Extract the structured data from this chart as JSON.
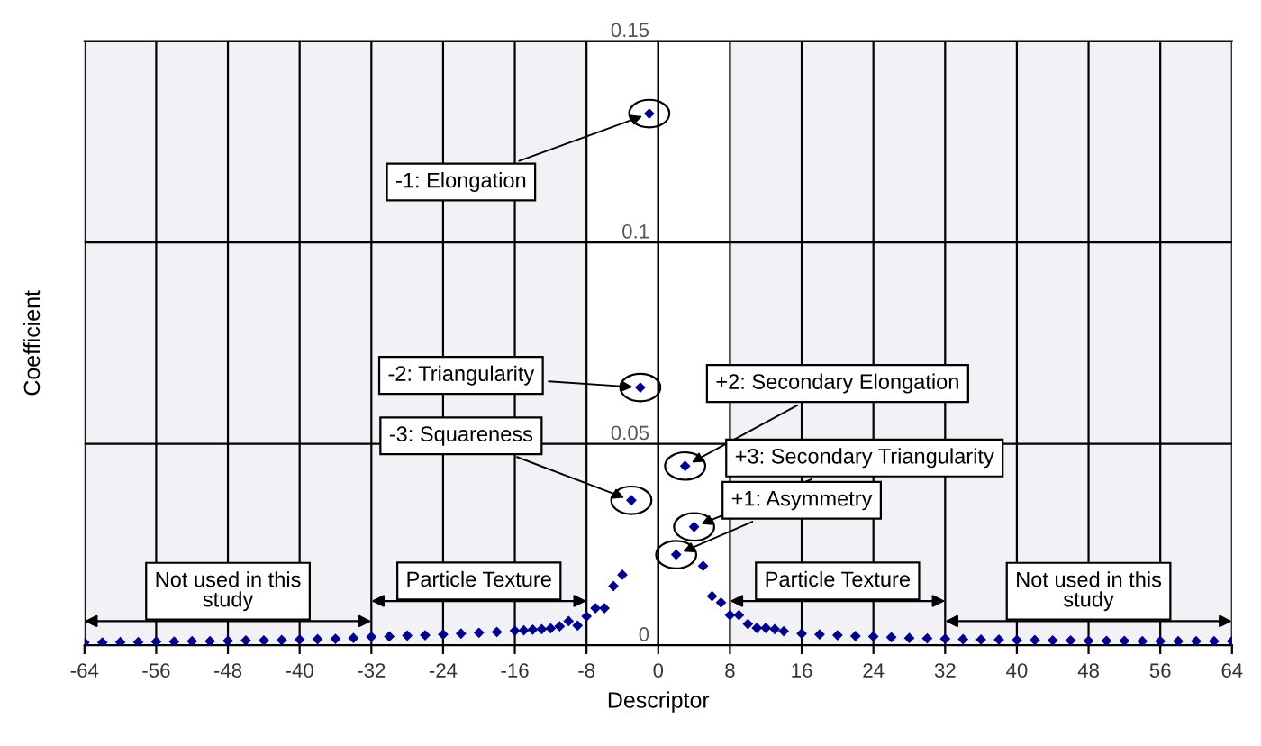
{
  "chart_data": {
    "type": "scatter",
    "xlabel": "Descriptor",
    "ylabel": "Coefficient",
    "xlim": [
      -64,
      64
    ],
    "ylim": [
      0,
      0.15
    ],
    "xticks": [
      -64,
      -56,
      -48,
      -40,
      -32,
      -24,
      -16,
      -8,
      0,
      8,
      16,
      24,
      32,
      40,
      48,
      56,
      64
    ],
    "yticks": [
      0,
      0.05,
      0.1,
      0.15
    ],
    "grid": true,
    "marker": "diamond",
    "series": [
      {
        "color": "#00008b",
        "x": [
          -64,
          -62,
          -60,
          -58,
          -56,
          -54,
          -52,
          -50,
          -48,
          -46,
          -44,
          -42,
          -40,
          -38,
          -36,
          -34,
          -32,
          -30,
          -28,
          -26,
          -24,
          -22,
          -20,
          -18,
          -16,
          -15,
          -14,
          -13,
          -12,
          -11,
          -10,
          -9,
          -8,
          -7,
          -6,
          -5,
          -4,
          -3,
          -2,
          -1,
          2,
          3,
          4,
          5,
          6,
          7,
          8,
          9,
          10,
          11,
          12,
          13,
          14,
          16,
          18,
          20,
          22,
          24,
          26,
          28,
          30,
          32,
          34,
          36,
          38,
          40,
          42,
          44,
          46,
          48,
          50,
          52,
          54,
          56,
          58,
          60,
          62,
          64
        ],
        "values": [
          0.0007,
          0.0007,
          0.0008,
          0.0008,
          0.0009,
          0.0009,
          0.001,
          0.001,
          0.0011,
          0.0012,
          0.0012,
          0.0013,
          0.0014,
          0.0015,
          0.0016,
          0.0018,
          0.0021,
          0.0022,
          0.0024,
          0.0025,
          0.0027,
          0.0029,
          0.0031,
          0.0033,
          0.0036,
          0.0037,
          0.0039,
          0.004,
          0.0042,
          0.0047,
          0.006,
          0.0049,
          0.0072,
          0.0092,
          0.0092,
          0.0147,
          0.0175,
          0.036,
          0.064,
          0.132,
          0.0225,
          0.0445,
          0.0294,
          0.0197,
          0.0122,
          0.0106,
          0.0075,
          0.0075,
          0.0053,
          0.0043,
          0.0043,
          0.004,
          0.0035,
          0.0029,
          0.0027,
          0.0025,
          0.0023,
          0.0022,
          0.002,
          0.0018,
          0.0017,
          0.0016,
          0.0015,
          0.0014,
          0.0014,
          0.0013,
          0.0013,
          0.0012,
          0.0012,
          0.0011,
          0.0011,
          0.0011,
          0.001,
          0.001,
          0.001,
          0.001,
          0.001,
          0.001
        ]
      }
    ],
    "annotations": [
      {
        "text": "-1: Elongation",
        "x": -1,
        "y": 0.132
      },
      {
        "text": "-2: Triangularity",
        "x": -2,
        "y": 0.064
      },
      {
        "text": "-3: Squareness",
        "x": -3,
        "y": 0.036
      },
      {
        "text": "+2: Secondary Elongation",
        "x": 3,
        "y": 0.0445
      },
      {
        "text": "+3: Secondary Triangularity",
        "x": 4,
        "y": 0.0294
      },
      {
        "text": "+1: Asymmetry",
        "x": 2,
        "y": 0.0225
      }
    ],
    "bands": [
      {
        "axis": "x",
        "from": -64,
        "to": -32,
        "label": "Not used in this\nstudy"
      },
      {
        "axis": "x",
        "from": -32,
        "to": -8,
        "label": "Particle Texture"
      },
      {
        "axis": "x",
        "from": 8,
        "to": 32,
        "label": "Particle Texture"
      },
      {
        "axis": "x",
        "from": 32,
        "to": 64,
        "label": "Not used in this\nstudy"
      }
    ]
  }
}
